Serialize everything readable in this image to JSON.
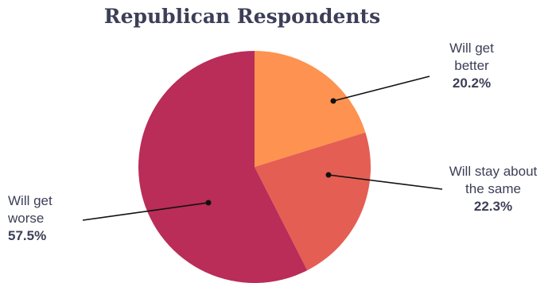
{
  "chart_data": {
    "type": "pie",
    "title": "Republican Respondents",
    "slices": [
      {
        "label": "Will get better",
        "value": 20.2,
        "display": "20.2%",
        "color": "#fe9250"
      },
      {
        "label": "Will stay about the same",
        "value": 22.3,
        "display": "22.3%",
        "color": "#e45e54"
      },
      {
        "label": "Will get worse",
        "value": 57.5,
        "display": "57.5%",
        "color": "#b92d58"
      }
    ],
    "start_angle": "top, clockwise"
  },
  "labels": {
    "better_line1": "Will get",
    "better_line2": "better",
    "same_line1": "Will stay about",
    "same_line2": "the same",
    "worse_line1": "Will get",
    "worse_line2": "worse"
  }
}
